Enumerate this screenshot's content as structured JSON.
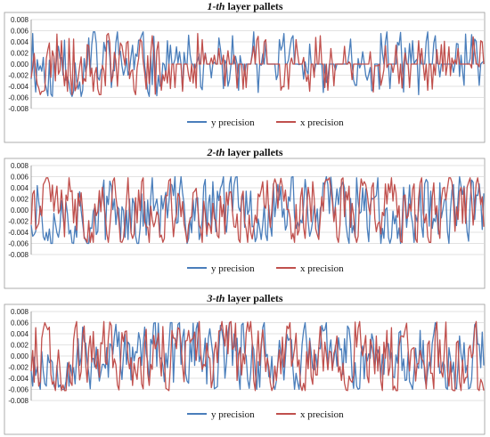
{
  "chart_data": [
    {
      "type": "line",
      "title_num": "1",
      "title_suffix": "-th",
      "title_rest": " layer pallets",
      "ylim": [
        -0.008,
        0.008
      ],
      "yticks": [
        "0.008",
        "0.006",
        "0.004",
        "0.002",
        "0.000",
        "-0.002",
        "-0.004",
        "-0.006",
        "-0.008"
      ],
      "legend": "bottom-center",
      "series": [
        {
          "name": "y precision",
          "color": "#4a7ebb",
          "seed": 11,
          "amp": 0.0058,
          "sparse": 0.55
        },
        {
          "name": "x precision",
          "color": "#c0504d",
          "seed": 23,
          "amp": 0.0055,
          "sparse": 0.6
        }
      ]
    },
    {
      "type": "line",
      "title_num": "2",
      "title_suffix": "-th",
      "title_rest": " layer pallets",
      "ylim": [
        -0.008,
        0.008
      ],
      "yticks": [
        "0.008",
        "0.006",
        "0.004",
        "0.002",
        "0.000",
        "-0.002",
        "-0.004",
        "-0.006",
        "-0.008"
      ],
      "legend": "bottom-center",
      "series": [
        {
          "name": "y precision",
          "color": "#4a7ebb",
          "seed": 37,
          "amp": 0.006,
          "sparse": 0.0
        },
        {
          "name": "x precision",
          "color": "#c0504d",
          "seed": 41,
          "amp": 0.0058,
          "sparse": 0.0
        }
      ]
    },
    {
      "type": "line",
      "title_num": "3",
      "title_suffix": "-th",
      "title_rest": " layer pallets",
      "ylim": [
        -0.008,
        0.008
      ],
      "yticks": [
        "0.008",
        "0.006",
        "0.004",
        "0.002",
        "0.000",
        "-0.002",
        "-0.004",
        "-0.006",
        "-0.008"
      ],
      "legend": "bottom-center",
      "series": [
        {
          "name": "y precision",
          "color": "#4a7ebb",
          "seed": 53,
          "amp": 0.006,
          "sparse": 0.0
        },
        {
          "name": "x precision",
          "color": "#c0504d",
          "seed": 67,
          "amp": 0.0062,
          "sparse": 0.0
        }
      ]
    }
  ]
}
